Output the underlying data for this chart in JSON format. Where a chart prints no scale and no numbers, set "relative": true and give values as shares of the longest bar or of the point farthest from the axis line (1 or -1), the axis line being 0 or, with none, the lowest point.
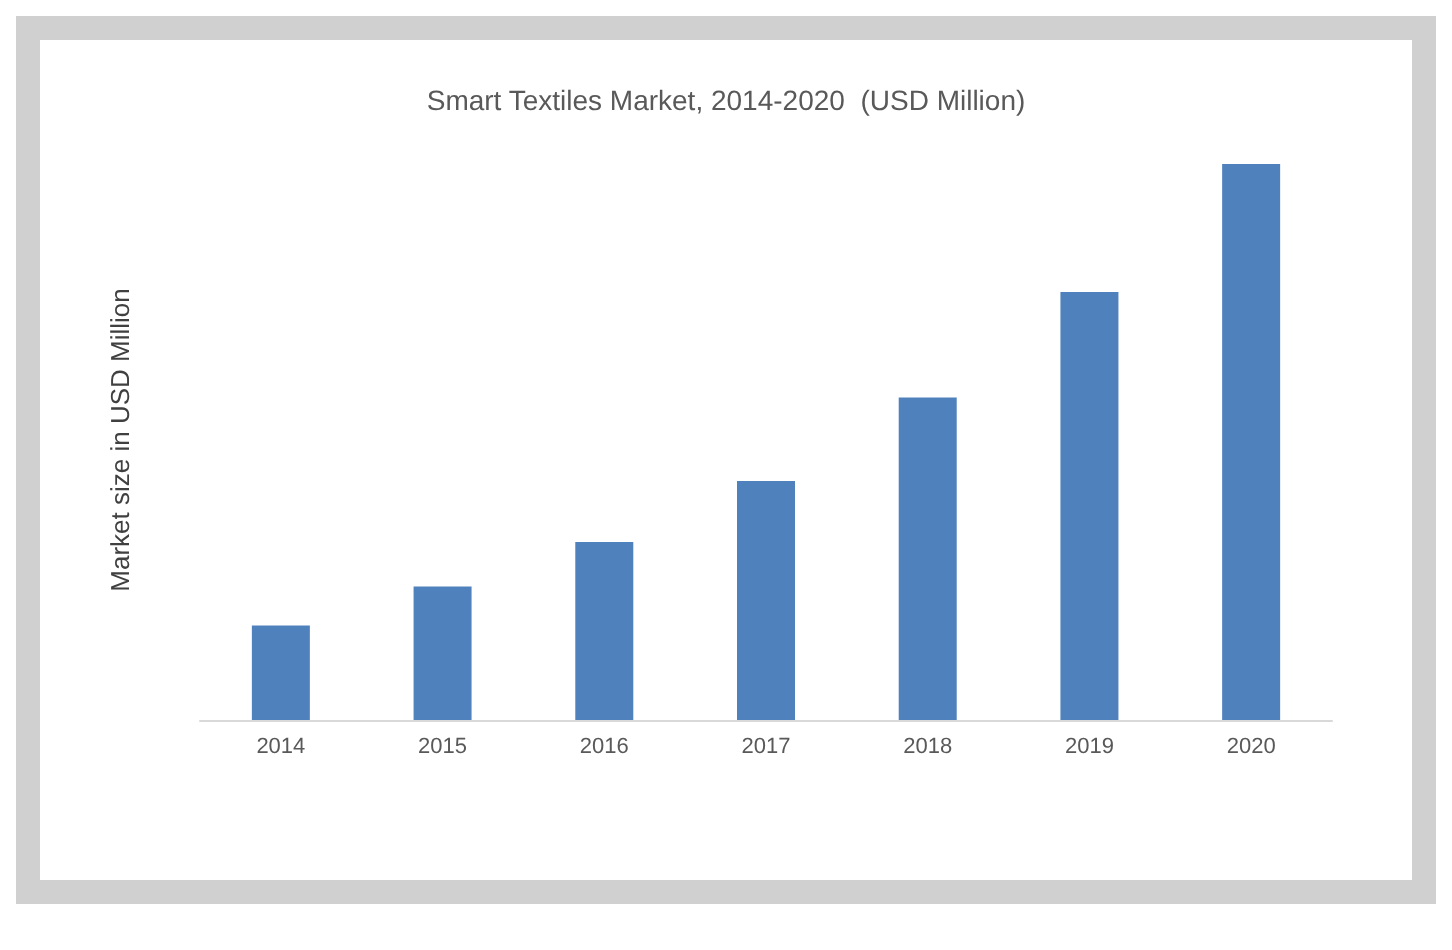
{
  "chart_data": {
    "type": "bar",
    "title": "Smart Textiles Market, 2014-2020  (USD Million)",
    "ylabel": "Market size in USD Million",
    "categories": [
      "2014",
      "2015",
      "2016",
      "2017",
      "2018",
      "2019",
      "2020"
    ],
    "values": [
      0.17,
      0.24,
      0.32,
      0.43,
      0.58,
      0.77,
      1
    ],
    "color": "#4f81bd",
    "relative": true
  }
}
